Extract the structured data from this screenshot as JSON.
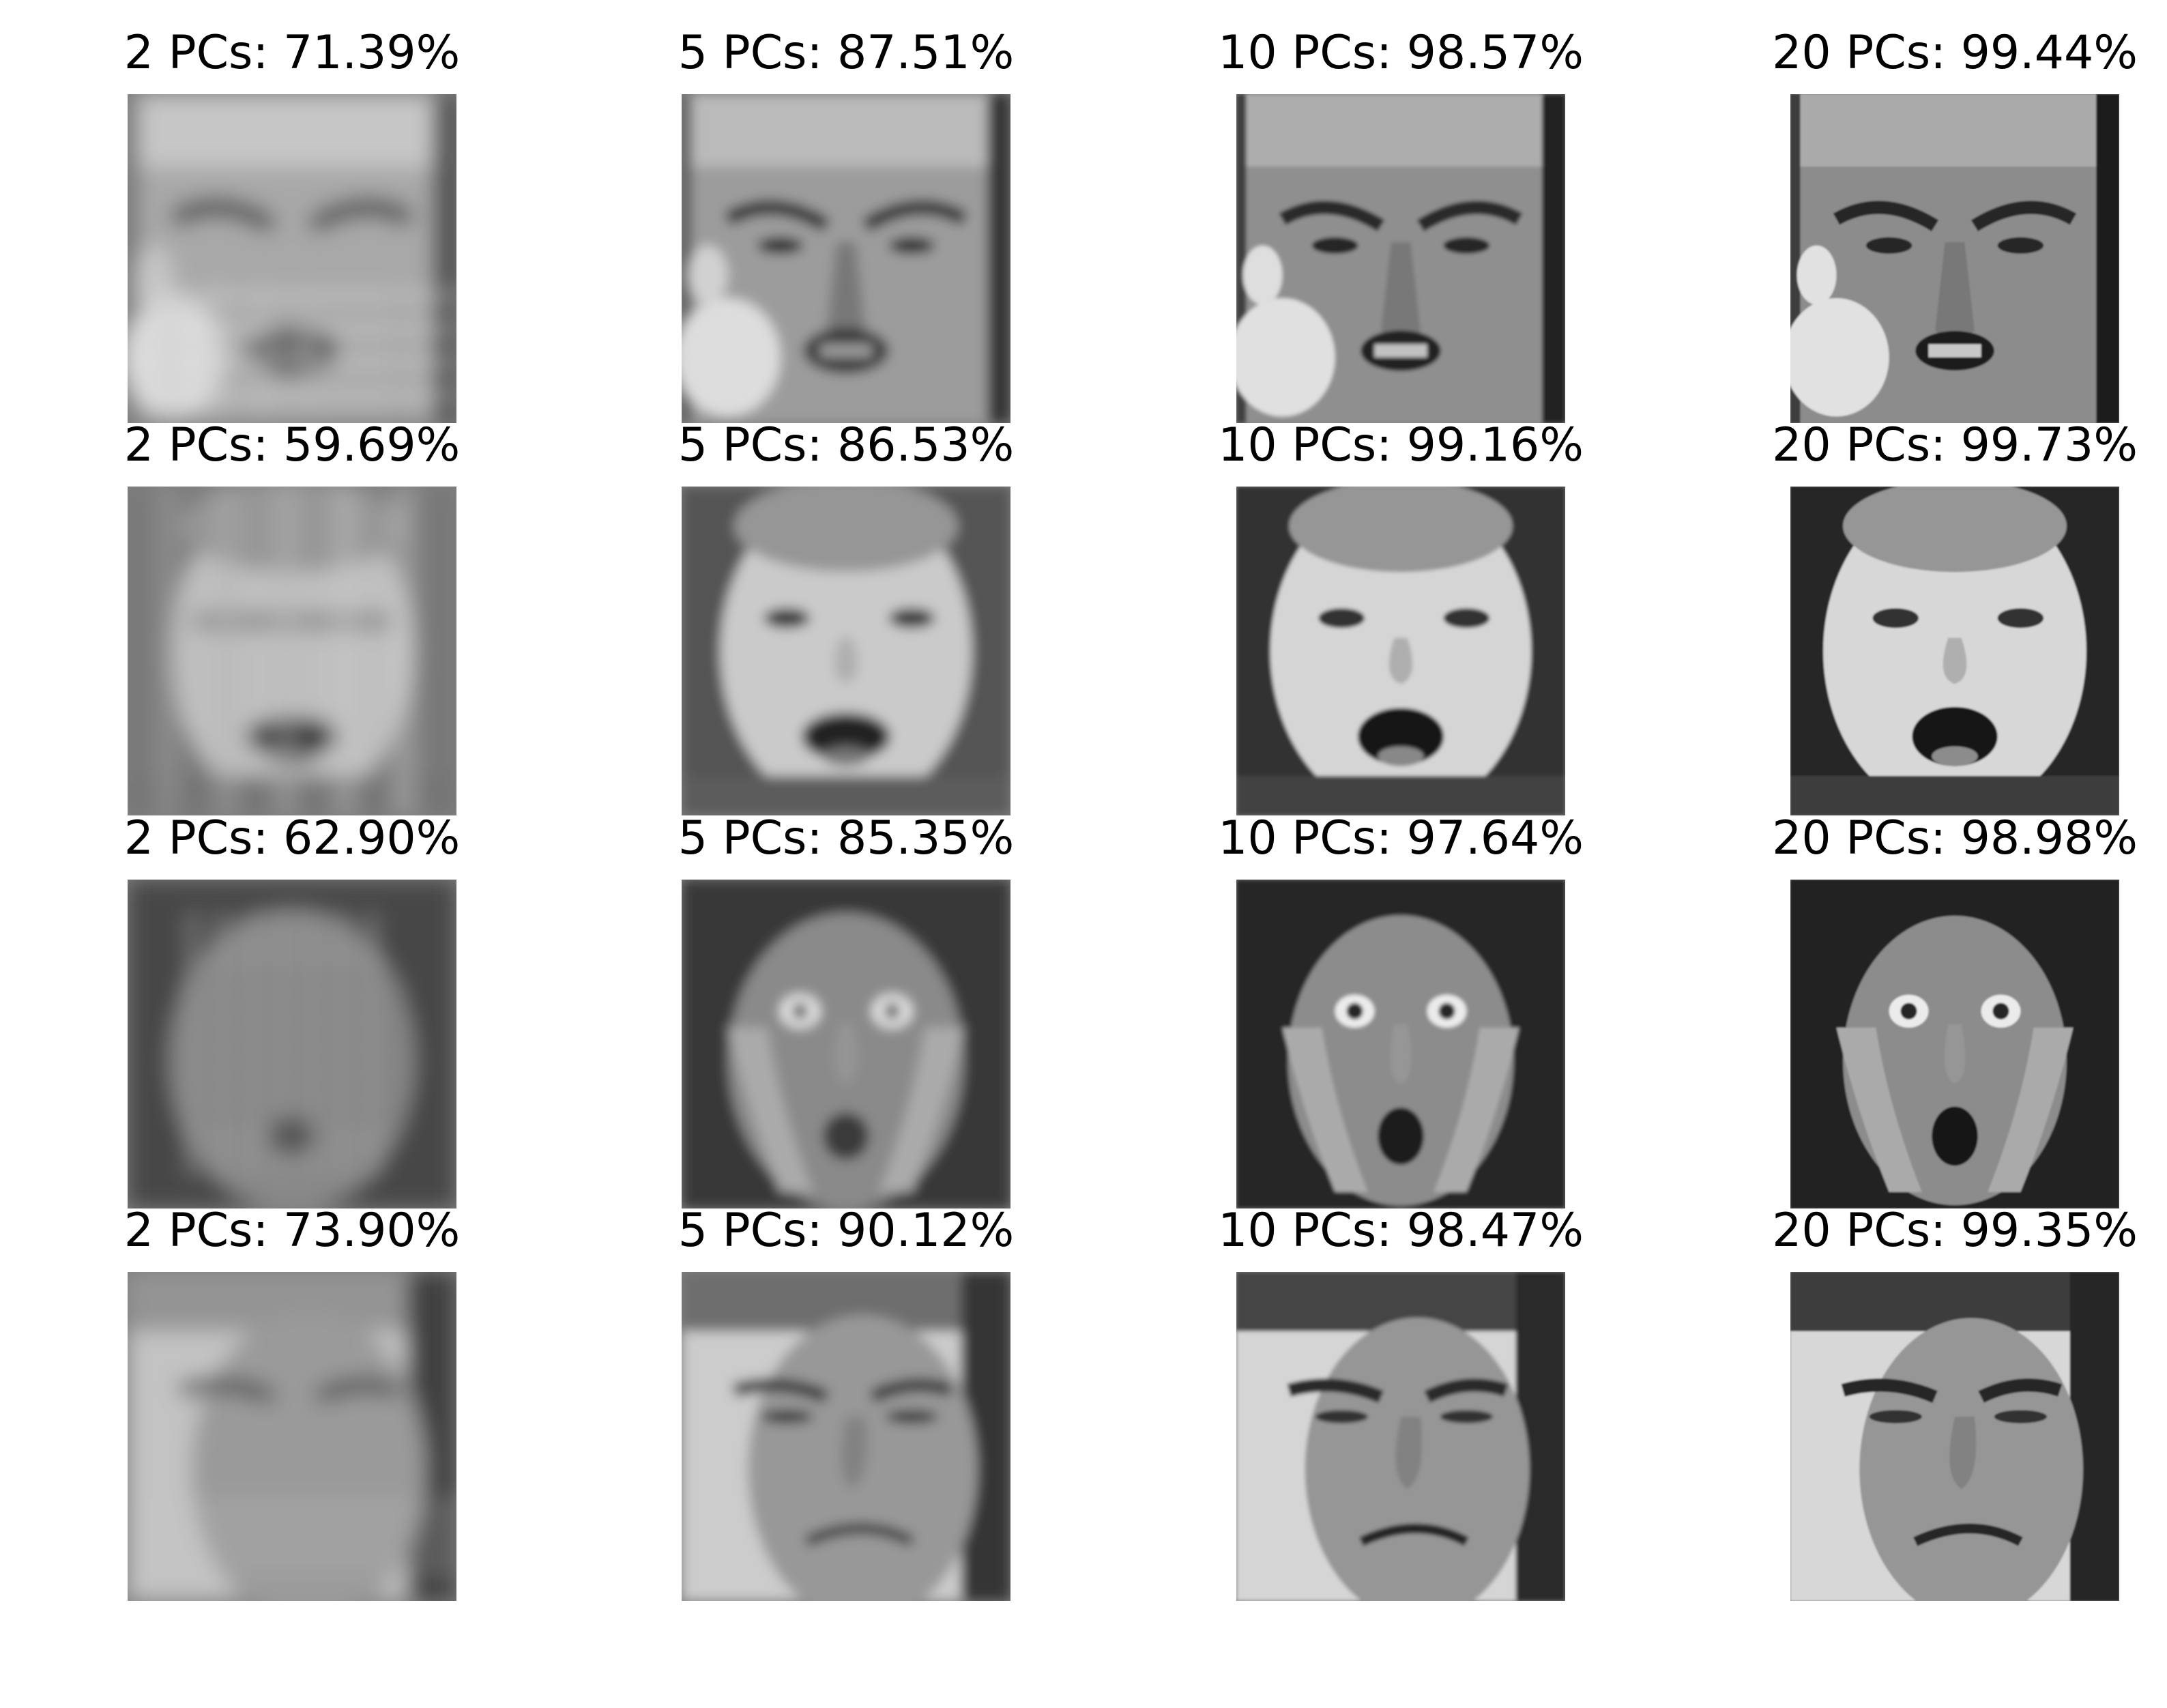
{
  "figure": {
    "rows": [
      {
        "cells": [
          {
            "title": "2 PCs: 71.39%",
            "pcs": 2,
            "variance_pct": 71.39
          },
          {
            "title": "5 PCs: 87.51%",
            "pcs": 5,
            "variance_pct": 87.51
          },
          {
            "title": "10 PCs: 98.57%",
            "pcs": 10,
            "variance_pct": 98.57
          },
          {
            "title": "20 PCs: 99.44%",
            "pcs": 20,
            "variance_pct": 99.44
          }
        ]
      },
      {
        "cells": [
          {
            "title": "2 PCs: 59.69%",
            "pcs": 2,
            "variance_pct": 59.69
          },
          {
            "title": "5 PCs: 86.53%",
            "pcs": 5,
            "variance_pct": 86.53
          },
          {
            "title": "10 PCs: 99.16%",
            "pcs": 10,
            "variance_pct": 99.16
          },
          {
            "title": "20 PCs: 99.73%",
            "pcs": 20,
            "variance_pct": 99.73
          }
        ]
      },
      {
        "cells": [
          {
            "title": "2 PCs: 62.90%",
            "pcs": 2,
            "variance_pct": 62.9
          },
          {
            "title": "5 PCs: 85.35%",
            "pcs": 5,
            "variance_pct": 85.35
          },
          {
            "title": "10 PCs: 97.64%",
            "pcs": 10,
            "variance_pct": 97.64
          },
          {
            "title": "20 PCs: 98.98%",
            "pcs": 20,
            "variance_pct": 98.98
          }
        ]
      },
      {
        "cells": [
          {
            "title": "2 PCs: 73.90%",
            "pcs": 2,
            "variance_pct": 73.9
          },
          {
            "title": "5 PCs: 90.12%",
            "pcs": 5,
            "variance_pct": 90.12
          },
          {
            "title": "10 PCs: 98.47%",
            "pcs": 10,
            "variance_pct": 98.47
          },
          {
            "title": "20 PCs: 99.35%",
            "pcs": 20,
            "variance_pct": 99.35
          }
        ]
      }
    ],
    "colormap": "gray",
    "background_color": "#ffffff",
    "text_color": "#000000"
  }
}
